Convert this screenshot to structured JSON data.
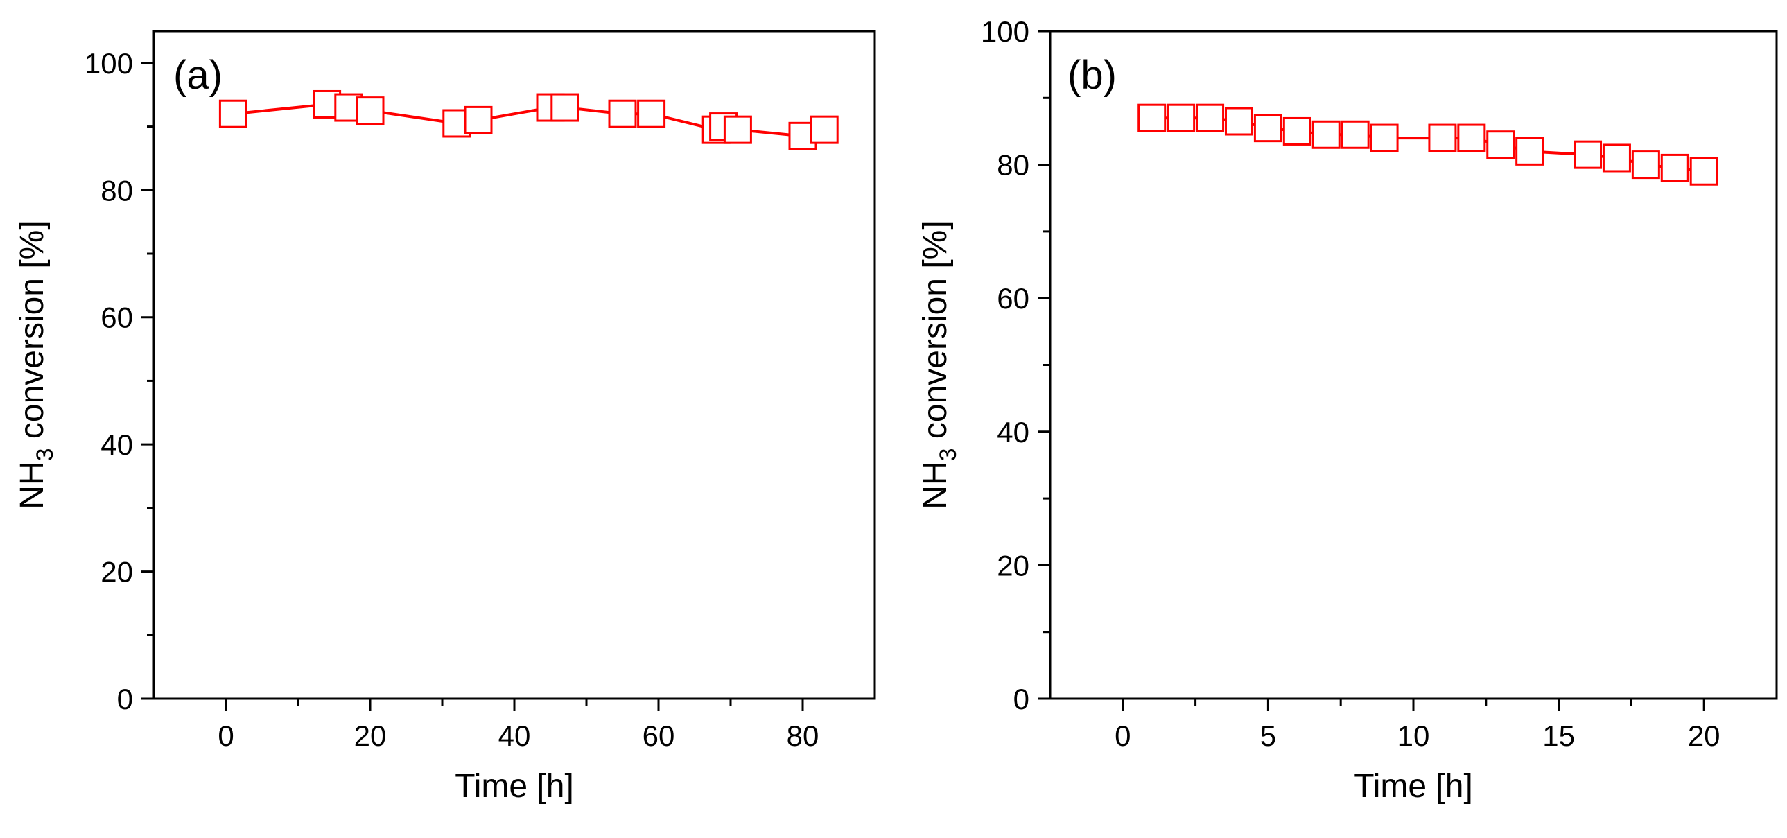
{
  "chart_data": [
    {
      "type": "line",
      "panel_label": "(a)",
      "xlabel": "Time [h]",
      "ylabel_main": "NH",
      "ylabel_sub": "3",
      "ylabel_rest": " conversion [%]",
      "xlim": [
        -10,
        90
      ],
      "ylim": [
        0,
        105
      ],
      "xticks": [
        0,
        20,
        40,
        60,
        80
      ],
      "yticks": [
        0,
        20,
        40,
        60,
        80,
        100
      ],
      "series": [
        {
          "name": "NH3 conversion",
          "color": "#ff0000",
          "marker": "square-open",
          "x": [
            1,
            14,
            17,
            20,
            32,
            35,
            45,
            47,
            55,
            59,
            68,
            69,
            71,
            80,
            83
          ],
          "y": [
            92,
            93.5,
            93,
            92.5,
            90.5,
            91,
            93,
            93,
            92,
            92,
            89.5,
            90,
            89.5,
            88.5,
            89.5
          ]
        }
      ]
    },
    {
      "type": "line",
      "panel_label": "(b)",
      "xlabel": "Time [h]",
      "ylabel_main": "NH",
      "ylabel_sub": "3",
      "ylabel_rest": " conversion [%]",
      "xlim": [
        -2.5,
        22.5
      ],
      "ylim": [
        0,
        100
      ],
      "xticks": [
        0,
        5,
        10,
        15,
        20
      ],
      "yticks": [
        0,
        20,
        40,
        60,
        80,
        100
      ],
      "series": [
        {
          "name": "NH3 conversion",
          "color": "#ff0000",
          "marker": "square-open",
          "x": [
            1,
            2,
            3,
            4,
            5,
            6,
            7,
            8,
            9,
            11,
            12,
            13,
            14,
            16,
            17,
            18,
            19,
            20
          ],
          "y": [
            87,
            87,
            87,
            86.5,
            85.5,
            85,
            84.5,
            84.5,
            84,
            84,
            84,
            83,
            82,
            81.5,
            81,
            80,
            79.5,
            79
          ]
        }
      ]
    }
  ]
}
